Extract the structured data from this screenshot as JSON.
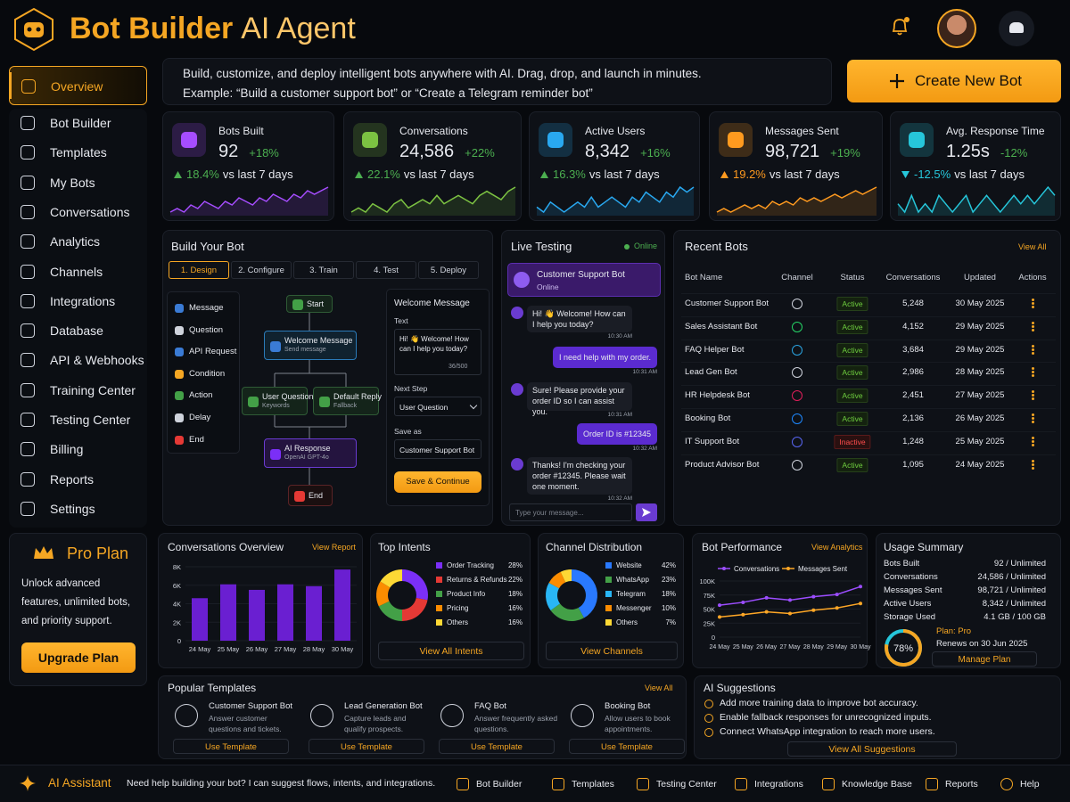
{
  "header": {
    "brand": "Bot Builder",
    "product": "AI Agent"
  },
  "sidebar": {
    "active": 0,
    "items": [
      "Overview",
      "Bot Builder",
      "Templates",
      "My Bots",
      "Conversations",
      "Analytics",
      "Channels",
      "Integrations",
      "Database",
      "API & Webhooks",
      "Training Center",
      "Testing Center",
      "Billing",
      "Reports",
      "Settings"
    ],
    "pro": {
      "title": "Pro Plan",
      "text": "Unlock advanced features, unlimited bots, and priority support.",
      "button": "Upgrade Plan"
    }
  },
  "banner": {
    "line1": "Build, customize, and deploy intelligent bots anywhere with AI. Drag, drop, and launch in minutes.",
    "line2": "Example: “Build a customer support bot” or “Create a Telegram reminder bot”",
    "button": "Create New Bot"
  },
  "stats": [
    {
      "label": "Bots Built",
      "value": "92",
      "change": "+18%",
      "trend": "18.4%",
      "note": "vs last 7 days",
      "color": "#a64dff",
      "trend_color": "#4caf50",
      "spark": [
        3,
        4,
        3,
        5,
        4,
        6,
        5,
        4,
        6,
        5,
        7,
        6,
        5,
        7,
        6,
        8,
        7,
        6,
        8,
        7,
        9,
        8,
        9,
        10
      ]
    },
    {
      "label": "Conversations",
      "value": "24,586",
      "change": "+22%",
      "trend": "22.1%",
      "note": "vs last 7 days",
      "color": "#7cc242",
      "trend_color": "#4caf50",
      "spark": [
        4,
        5,
        4,
        6,
        5,
        4,
        6,
        7,
        5,
        6,
        7,
        6,
        8,
        6,
        7,
        8,
        7,
        6,
        8,
        9,
        8,
        7,
        9,
        10
      ]
    },
    {
      "label": "Active Users",
      "value": "8,342",
      "change": "+16%",
      "trend": "16.3%",
      "note": "vs last 7 days",
      "color": "#29a8f0",
      "trend_color": "#4caf50",
      "spark": [
        5,
        4,
        6,
        5,
        4,
        5,
        6,
        5,
        7,
        5,
        6,
        7,
        6,
        5,
        7,
        6,
        8,
        7,
        6,
        8,
        7,
        9,
        8,
        9
      ]
    },
    {
      "label": "Messages Sent",
      "value": "98,721",
      "change": "+19%",
      "trend": "19.2%",
      "note": "vs last 7 days",
      "color": "#ff9a1f",
      "trend_color": "#ff9a1f",
      "spark": [
        3,
        4,
        3,
        4,
        5,
        4,
        5,
        4,
        6,
        5,
        6,
        5,
        7,
        6,
        7,
        6,
        7,
        8,
        7,
        8,
        9,
        8,
        9,
        10
      ]
    },
    {
      "label": "Avg. Response Time",
      "value": "1.25s",
      "change": "-12%",
      "trend": "-12.5%",
      "note": "vs last 7 days",
      "color": "#26c6da",
      "trend_color": "#26c6da",
      "spark": [
        6,
        5,
        7,
        5,
        6,
        5,
        7,
        6,
        5,
        6,
        7,
        5,
        6,
        7,
        6,
        5,
        6,
        7,
        6,
        7,
        6,
        7,
        8,
        7
      ]
    }
  ],
  "build": {
    "title": "Build Your Bot",
    "active_step": 0,
    "steps": [
      "1. Design",
      "2. Configure",
      "3. Train",
      "4. Test",
      "5. Deploy"
    ],
    "palette": [
      "Message",
      "Question",
      "API Request",
      "Condition",
      "Action",
      "Delay",
      "End"
    ],
    "flow": {
      "start": "Start",
      "welcome": "Welcome Message",
      "welcome_sub": "Send message",
      "question": "User Question",
      "question_sub": "Keywords",
      "fallback": "Default Reply",
      "fallback_sub": "Fallback",
      "ai": "AI Response",
      "ai_sub": "OpenAI GPT-4o",
      "end": "End"
    },
    "props": {
      "title": "Welcome Message",
      "text_label": "Text",
      "text": "Hi! 👋 Welcome! How can I help you today?",
      "counter": "36/500",
      "next_label": "Next Step",
      "next": "User Question",
      "save_label": "Save as",
      "save_name": "Customer Support Bot",
      "button": "Save & Continue"
    }
  },
  "live": {
    "title": "Live Testing",
    "status": "Online",
    "bot": "Customer Support Bot",
    "bot_status": "Online",
    "placeholder": "Type your message...",
    "messages": [
      {
        "from": "bot",
        "text": "Hi! 👋 Welcome! How can I help you today?",
        "time": "10:30 AM"
      },
      {
        "from": "user",
        "text": "I need help with my order.",
        "time": "10:31 AM"
      },
      {
        "from": "bot",
        "text": "Sure! Please provide your order ID so I can assist you.",
        "time": "10:31 AM"
      },
      {
        "from": "user",
        "text": "Order ID is #12345",
        "time": "10:32 AM"
      },
      {
        "from": "bot",
        "text": "Thanks! I'm checking your order #12345. Please wait one moment.",
        "time": "10:32 AM"
      }
    ]
  },
  "recent": {
    "title": "Recent Bots",
    "link": "View All",
    "headers": [
      "Bot Name",
      "Channel",
      "Status",
      "Conversations",
      "Updated",
      "Actions"
    ],
    "rows": [
      [
        "Customer Support Bot",
        "Active",
        "5,248",
        "30 May 2025"
      ],
      [
        "Sales Assistant Bot",
        "Active",
        "4,152",
        "29 May 2025"
      ],
      [
        "FAQ Helper Bot",
        "Active",
        "3,684",
        "29 May 2025"
      ],
      [
        "Lead Gen Bot",
        "Active",
        "2,986",
        "28 May 2025"
      ],
      [
        "HR Helpdesk Bot",
        "Active",
        "2,451",
        "27 May 2025"
      ],
      [
        "Booking Bot",
        "Active",
        "2,136",
        "26 May 2025"
      ],
      [
        "IT Support Bot",
        "Inactive",
        "1,248",
        "25 May 2025"
      ],
      [
        "Product Advisor Bot",
        "Active",
        "1,095",
        "24 May 2025"
      ]
    ]
  },
  "conv_overview": {
    "type": "bar",
    "title": "Conversations Overview",
    "link": "View Report",
    "color": "#6a1fd1",
    "categories": [
      "24 May",
      "25 May",
      "26 May",
      "27 May",
      "28 May",
      "30 May"
    ],
    "values": [
      4600,
      6100,
      5500,
      6100,
      5900,
      7700
    ],
    "ylim": [
      0,
      8000
    ],
    "yticks": [
      0,
      {
        "value": 2000,
        "label": "2K"
      },
      {
        "value": 4000,
        "label": "4K"
      },
      {
        "value": 6000,
        "label": "6K"
      },
      {
        "value": 8000,
        "label": "8K"
      }
    ]
  },
  "intents": {
    "type": "pie",
    "title": "Top Intents",
    "button": "View All Intents",
    "categories": [
      "Order Tracking",
      "Returns & Refunds",
      "Product Info",
      "Pricing",
      "Others"
    ],
    "values": [
      28,
      22,
      18,
      16,
      16
    ],
    "value_labels": [
      "28%",
      "22%",
      "18%",
      "16%",
      "16%"
    ],
    "colors": [
      "#7b2ff7",
      "#e53935",
      "#43a047",
      "#fb8c00",
      "#fdd835"
    ]
  },
  "channels": {
    "type": "pie",
    "title": "Channel Distribution",
    "button": "View Channels",
    "categories": [
      "Website",
      "WhatsApp",
      "Telegram",
      "Messenger",
      "Others"
    ],
    "values": [
      42,
      23,
      18,
      10,
      7
    ],
    "value_labels": [
      "42%",
      "23%",
      "18%",
      "10%",
      "7%"
    ],
    "colors": [
      "#2979ff",
      "#43a047",
      "#29b6f6",
      "#fb8c00",
      "#fdd835"
    ]
  },
  "performance": {
    "type": "line",
    "title": "Bot Performance",
    "link": "View Analytics",
    "categories": [
      "24 May",
      "25 May",
      "26 May",
      "27 May",
      "28 May",
      "29 May",
      "30 May"
    ],
    "ylim": [
      0,
      100000
    ],
    "yticks": [
      0,
      {
        "value": 25000,
        "label": "25K"
      },
      {
        "value": 50000,
        "label": "50K"
      },
      {
        "value": 75000,
        "label": "75K"
      },
      {
        "value": 100000,
        "label": "100K"
      }
    ],
    "series": [
      {
        "name": "Conversations",
        "color": "#9c4dff",
        "values": [
          57000,
          62000,
          70000,
          66000,
          72000,
          76000,
          90000
        ]
      },
      {
        "name": "Messages Sent",
        "color": "#ffa726",
        "values": [
          36000,
          40000,
          45000,
          42000,
          48000,
          52000,
          60000
        ]
      }
    ]
  },
  "usage": {
    "title": "Usage Summary",
    "rows": [
      [
        "Bots Built",
        "92 / Unlimited"
      ],
      [
        "Conversations",
        "24,586 / Unlimited"
      ],
      [
        "Messages Sent",
        "98,721 / Unlimited"
      ],
      [
        "Active Users",
        "8,342 / Unlimited"
      ],
      [
        "Storage Used",
        "4.1 GB / 100 GB"
      ]
    ],
    "gauge": {
      "value": 78,
      "label": "78%"
    },
    "plan": "Plan: Pro",
    "renews": "Renews on 30 Jun 2025",
    "button": "Manage Plan"
  },
  "templates": {
    "title": "Popular Templates",
    "link": "View All",
    "button": "Use Template",
    "items": [
      {
        "title": "Customer Support Bot",
        "desc": "Answer customer questions and tickets."
      },
      {
        "title": "Lead Generation Bot",
        "desc": "Capture leads and qualify prospects."
      },
      {
        "title": "FAQ Bot",
        "desc": "Answer frequently asked questions."
      },
      {
        "title": "Booking Bot",
        "desc": "Allow users to book appointments."
      }
    ]
  },
  "suggestions": {
    "title": "AI Suggestions",
    "items": [
      "Add more training data to improve bot accuracy.",
      "Enable fallback responses for unrecognized inputs.",
      "Connect WhatsApp integration to reach more users."
    ],
    "button": "View All Suggestions"
  },
  "bottom_bar": {
    "title": "AI Assistant",
    "text": "Need help building your bot? I can suggest flows, intents, and integrations.",
    "links": [
      "Bot Builder",
      "Templates",
      "Testing Center",
      "Integrations",
      "Knowledge Base",
      "Reports",
      "Help"
    ]
  }
}
